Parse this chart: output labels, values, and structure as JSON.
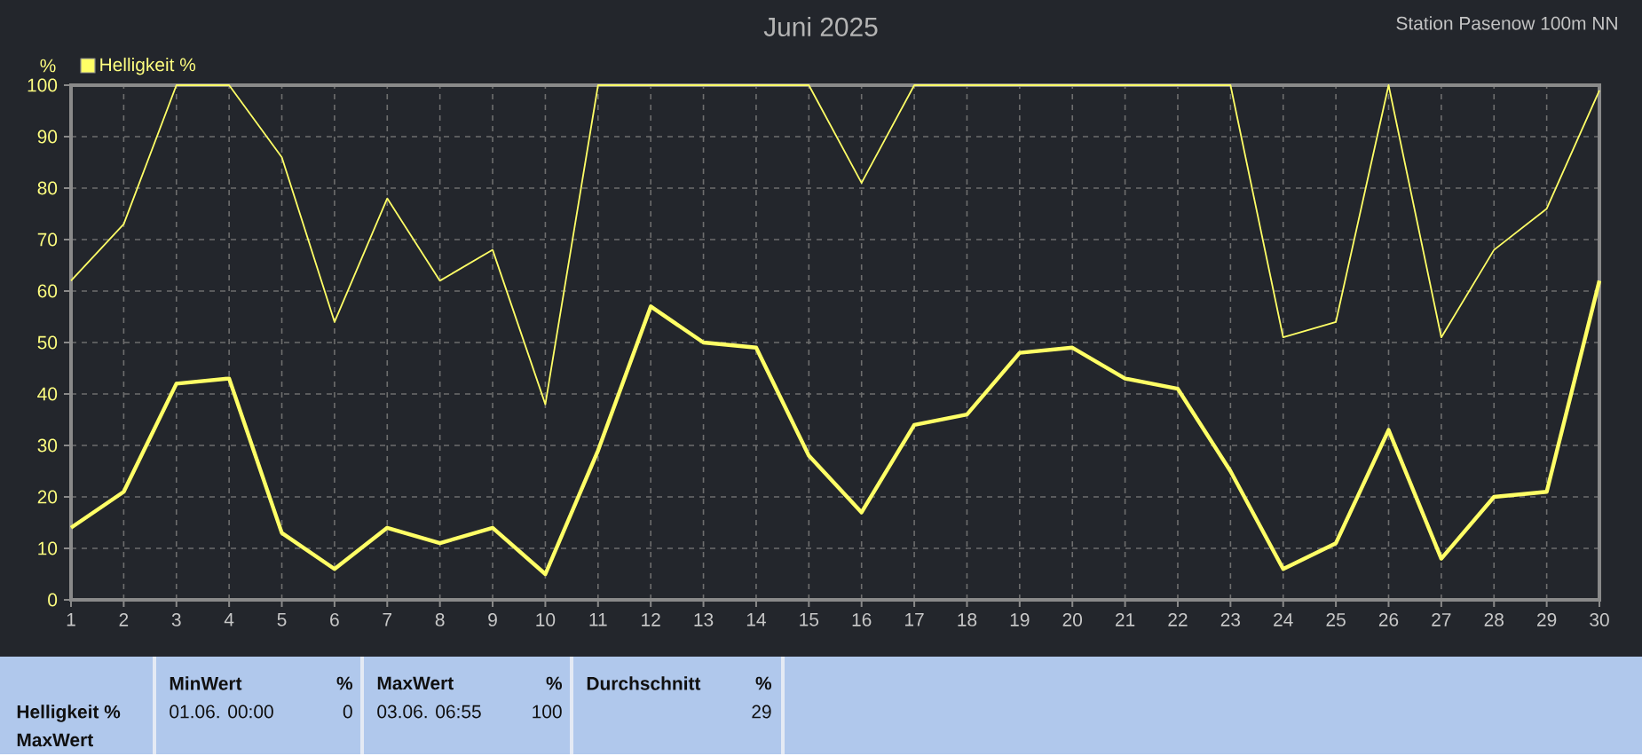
{
  "chart_data": {
    "type": "line",
    "title": "Juni 2025",
    "subtitle": "Station Pasenow 100m NN",
    "ylabel": "%",
    "categories": [
      "1",
      "2",
      "3",
      "4",
      "5",
      "6",
      "7",
      "8",
      "9",
      "10",
      "11",
      "12",
      "13",
      "14",
      "15",
      "16",
      "17",
      "18",
      "19",
      "20",
      "21",
      "22",
      "23",
      "24",
      "25",
      "26",
      "27",
      "28",
      "29",
      "30"
    ],
    "series": [
      {
        "color": "#ffff66",
        "values": [
          62,
          73,
          100,
          100,
          86,
          54,
          78,
          62,
          68,
          38,
          100,
          100,
          100,
          100,
          100,
          81,
          100,
          100,
          100,
          100,
          100,
          100,
          100,
          51,
          54,
          100,
          51,
          68,
          76,
          99
        ]
      },
      {
        "name": "Helligkeit %",
        "color": "#ffff66",
        "values": [
          14,
          21,
          42,
          43,
          13,
          6,
          14,
          11,
          14,
          5,
          29,
          57,
          50,
          49,
          28,
          17,
          34,
          36,
          48,
          49,
          43,
          41,
          25,
          6,
          11,
          33,
          8,
          20,
          21,
          62
        ]
      }
    ],
    "ylim": [
      0,
      100
    ],
    "yticks": [
      0,
      10,
      20,
      30,
      40,
      50,
      60,
      70,
      80,
      90,
      100
    ],
    "grid": true,
    "legend": "top left",
    "line_style": "solid",
    "annotations": [
      "Helligkeit %",
      "MaxWert",
      "MinWert",
      "%",
      "01.06. 00:00",
      "0",
      "MaxWert",
      "%",
      "03.06. 06:55",
      "100",
      "Durchschnitt",
      "%",
      "29"
    ]
  }
}
